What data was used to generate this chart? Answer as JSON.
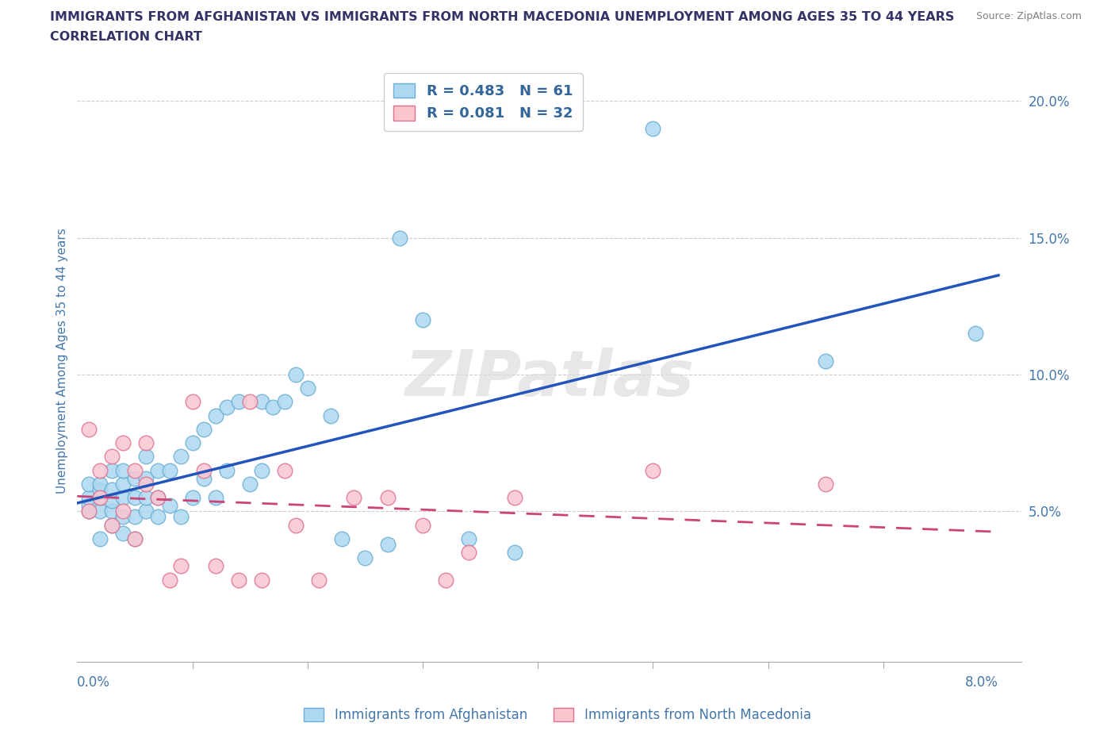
{
  "title_line1": "IMMIGRANTS FROM AFGHANISTAN VS IMMIGRANTS FROM NORTH MACEDONIA UNEMPLOYMENT AMONG AGES 35 TO 44 YEARS",
  "title_line2": "CORRELATION CHART",
  "source": "Source: ZipAtlas.com",
  "ylabel": "Unemployment Among Ages 35 to 44 years",
  "xlim": [
    0.0,
    0.082
  ],
  "ylim": [
    -0.005,
    0.215
  ],
  "yticks": [
    0.05,
    0.1,
    0.15,
    0.2
  ],
  "ytick_labels": [
    "5.0%",
    "10.0%",
    "15.0%",
    "20.0%"
  ],
  "xtick_minor_positions": [
    0.01,
    0.02,
    0.03,
    0.04,
    0.05,
    0.06,
    0.07
  ],
  "xtick_label_left": "0.0%",
  "xtick_label_right": "8.0%",
  "afghanistan_color": "#add8f0",
  "afghanistan_edge_color": "#6baed6",
  "north_macedonia_color": "#f9c6d0",
  "north_macedonia_edge_color": "#e07090",
  "afghanistan_R": 0.483,
  "afghanistan_N": 61,
  "north_macedonia_R": 0.081,
  "north_macedonia_N": 32,
  "trend_afghanistan_color": "#2255bb",
  "trend_north_macedonia_color": "#cc4477",
  "watermark_text": "ZIPatlas",
  "background_color": "#ffffff",
  "grid_color": "#cccccc",
  "title_color": "#333366",
  "axis_label_color": "#4477aa",
  "legend_text_color": "#336699",
  "afghanistan_x": [
    0.001,
    0.001,
    0.001,
    0.001,
    0.002,
    0.002,
    0.002,
    0.002,
    0.002,
    0.003,
    0.003,
    0.003,
    0.003,
    0.003,
    0.004,
    0.004,
    0.004,
    0.004,
    0.004,
    0.005,
    0.005,
    0.005,
    0.005,
    0.006,
    0.006,
    0.006,
    0.006,
    0.007,
    0.007,
    0.007,
    0.008,
    0.008,
    0.009,
    0.009,
    0.01,
    0.01,
    0.011,
    0.011,
    0.012,
    0.012,
    0.013,
    0.013,
    0.014,
    0.015,
    0.016,
    0.016,
    0.017,
    0.018,
    0.019,
    0.02,
    0.022,
    0.023,
    0.025,
    0.027,
    0.028,
    0.03,
    0.034,
    0.038,
    0.05,
    0.065,
    0.078
  ],
  "afghanistan_y": [
    0.05,
    0.052,
    0.055,
    0.06,
    0.04,
    0.05,
    0.055,
    0.058,
    0.06,
    0.045,
    0.05,
    0.054,
    0.058,
    0.065,
    0.042,
    0.048,
    0.055,
    0.06,
    0.065,
    0.04,
    0.048,
    0.055,
    0.062,
    0.05,
    0.055,
    0.062,
    0.07,
    0.048,
    0.055,
    0.065,
    0.052,
    0.065,
    0.048,
    0.07,
    0.055,
    0.075,
    0.062,
    0.08,
    0.055,
    0.085,
    0.065,
    0.088,
    0.09,
    0.06,
    0.065,
    0.09,
    0.088,
    0.09,
    0.1,
    0.095,
    0.085,
    0.04,
    0.033,
    0.038,
    0.15,
    0.12,
    0.04,
    0.035,
    0.19,
    0.105,
    0.115
  ],
  "north_macedonia_x": [
    0.001,
    0.001,
    0.002,
    0.002,
    0.003,
    0.003,
    0.004,
    0.004,
    0.005,
    0.005,
    0.006,
    0.006,
    0.007,
    0.008,
    0.009,
    0.01,
    0.011,
    0.012,
    0.014,
    0.015,
    0.016,
    0.018,
    0.019,
    0.021,
    0.024,
    0.027,
    0.03,
    0.032,
    0.034,
    0.038,
    0.05,
    0.065
  ],
  "north_macedonia_y": [
    0.05,
    0.08,
    0.055,
    0.065,
    0.045,
    0.07,
    0.075,
    0.05,
    0.065,
    0.04,
    0.075,
    0.06,
    0.055,
    0.025,
    0.03,
    0.09,
    0.065,
    0.03,
    0.025,
    0.09,
    0.025,
    0.065,
    0.045,
    0.025,
    0.055,
    0.055,
    0.045,
    0.025,
    0.035,
    0.055,
    0.065,
    0.06
  ]
}
